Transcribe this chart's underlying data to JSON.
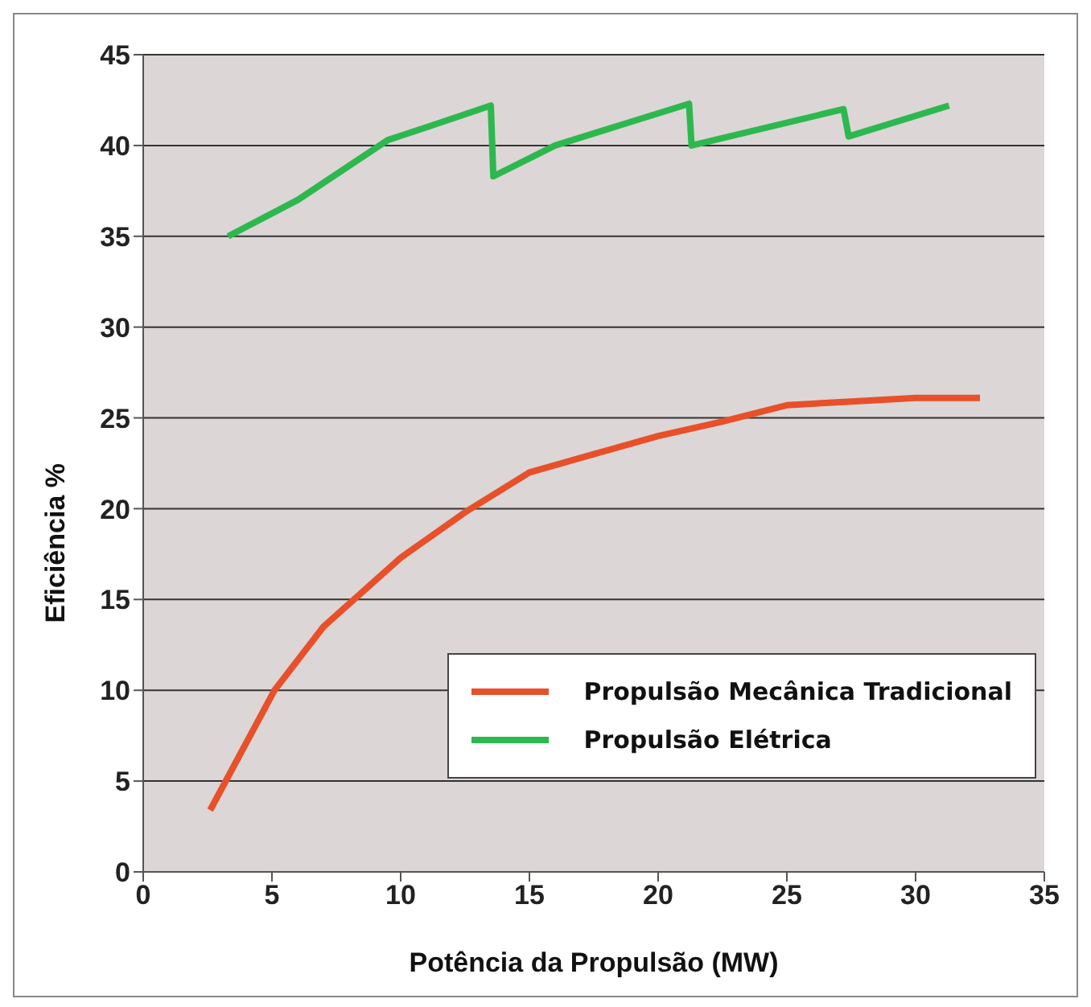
{
  "chart_data": {
    "type": "line",
    "xlabel": "Potência da Propulsão  (MW)",
    "ylabel": "Eficiência  %",
    "xlim": [
      0,
      35
    ],
    "xticks": [
      0,
      5,
      10,
      15,
      20,
      25,
      30,
      35
    ],
    "ylim": [
      0,
      45
    ],
    "yticks": [
      0,
      5,
      10,
      15,
      20,
      25,
      30,
      35,
      40,
      45
    ],
    "grid": "y",
    "legend": "bottom right",
    "marker": "none",
    "line_style": "solid",
    "series": [
      {
        "name": "Propulsão Mecânica Tradicional",
        "color": "#e8502a",
        "x": [
          2.6,
          5.1,
          7,
          10,
          12.5,
          15,
          17.5,
          20,
          22.5,
          25,
          27.5,
          30,
          32.5
        ],
        "values": [
          3.4,
          10,
          13.5,
          17.3,
          19.8,
          22,
          23,
          24,
          24.8,
          25.7,
          25.9,
          26.1,
          26.1
        ]
      },
      {
        "name": "Propulsão Elétrica",
        "color": "#2db84f",
        "x": [
          3.3,
          6,
          9.5,
          11,
          13.5,
          13.6,
          16,
          21.2,
          21.3,
          27.2,
          27.4,
          31.3
        ],
        "values": [
          35,
          37,
          40.3,
          41,
          42.2,
          38.3,
          40,
          42.3,
          40,
          42,
          40.5,
          42.2
        ]
      }
    ]
  }
}
